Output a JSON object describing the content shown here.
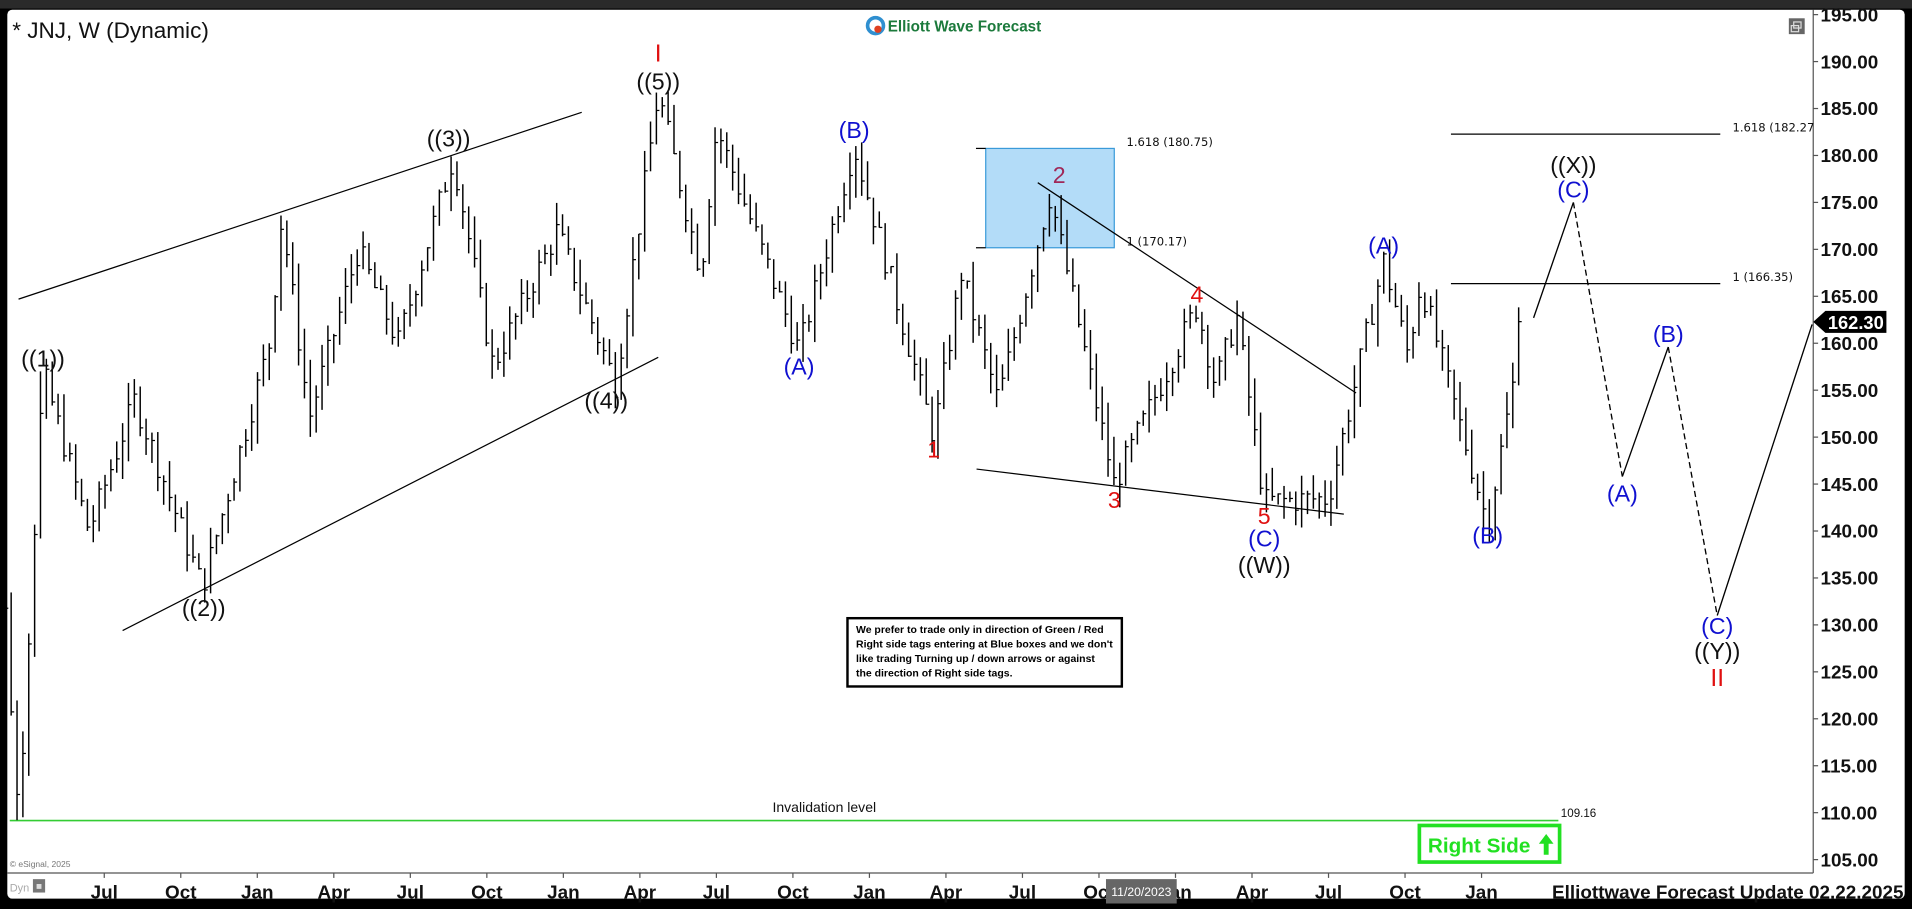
{
  "header": {
    "title": "* JNJ, W (Dynamic)",
    "logo_text": "Elliott Wave Forecast"
  },
  "footer": {
    "update": "Elliottwave Forecast Update 02.22.2025",
    "copyright": "© eSignal, 2025",
    "dyn": "Dyn",
    "cursor_date": "11/20/2023"
  },
  "note": [
    "We prefer to trade only in direction of Green / Red",
    "Right side tags entering at Blue boxes and we don't",
    "like trading Turning up / down arrows or against",
    "the direction of Right side tags."
  ],
  "right_side_tag": {
    "label": "Right Side",
    "direction": "up",
    "color": "#22e022"
  },
  "invalidation": {
    "label": "Invalidation level",
    "value_label": "109.16",
    "value": 109.16,
    "color": "#33cc33"
  },
  "last_price": {
    "label": "162.30",
    "value": 162.3
  },
  "colors": {
    "blue_box": "#b3dcf8",
    "blue_box_border": "#3a9ad9",
    "wave_blue": "#1010d0",
    "wave_red": "#e01010",
    "wave_maroon": "#a02858",
    "logo_green": "#1c7a3c"
  },
  "chart_data": {
    "type": "ohlc",
    "symbol": "JNJ",
    "interval": "W",
    "ylim": [
      103,
      196
    ],
    "y_ticks": [
      "195.00",
      "190.00",
      "185.00",
      "180.00",
      "175.00",
      "170.00",
      "165.00",
      "160.00",
      "155.00",
      "150.00",
      "145.00",
      "140.00",
      "135.00",
      "130.00",
      "125.00",
      "120.00",
      "115.00",
      "110.00",
      "105.00"
    ],
    "x_ticks": [
      {
        "label": "Jul",
        "date": 2020.5
      },
      {
        "label": "Oct",
        "date": 2020.75
      },
      {
        "label": "Jan",
        "date": 2021.0
      },
      {
        "label": "Apr",
        "date": 2021.25
      },
      {
        "label": "Jul",
        "date": 2021.5
      },
      {
        "label": "Oct",
        "date": 2021.75
      },
      {
        "label": "Jan",
        "date": 2022.0
      },
      {
        "label": "Apr",
        "date": 2022.25
      },
      {
        "label": "Jul",
        "date": 2022.5
      },
      {
        "label": "Oct",
        "date": 2022.75
      },
      {
        "label": "Jan",
        "date": 2023.0
      },
      {
        "label": "Apr",
        "date": 2023.25
      },
      {
        "label": "Jul",
        "date": 2023.5
      },
      {
        "label": "Oct",
        "date": 2023.75
      },
      {
        "label": "Jan",
        "date": 2024.0
      },
      {
        "label": "Apr",
        "date": 2024.25
      },
      {
        "label": "Jul",
        "date": 2024.5
      },
      {
        "label": "Oct",
        "date": 2024.75
      },
      {
        "label": "Jan",
        "date": 2025.0
      }
    ],
    "price_path": [
      [
        2020.1,
        148
      ],
      [
        2020.14,
        150
      ],
      [
        2020.22,
        109.2
      ],
      [
        2020.3,
        157.0
      ],
      [
        2020.45,
        140
      ],
      [
        2020.6,
        154
      ],
      [
        2020.82,
        134
      ],
      [
        2021.04,
        160
      ],
      [
        2021.08,
        173.6
      ],
      [
        2021.17,
        152
      ],
      [
        2021.33,
        170
      ],
      [
        2021.46,
        160
      ],
      [
        2021.64,
        179.9
      ],
      [
        2021.77,
        157.5
      ],
      [
        2021.98,
        172
      ],
      [
        2022.17,
        155.7
      ],
      [
        2022.31,
        186.7
      ],
      [
        2022.45,
        167.5
      ],
      [
        2022.5,
        183
      ],
      [
        2022.77,
        159.2
      ],
      [
        2022.95,
        181
      ],
      [
        2023.21,
        150.1
      ],
      [
        2023.3,
        167.5
      ],
      [
        2023.42,
        153.8
      ],
      [
        2023.59,
        175.9
      ],
      [
        2023.8,
        144.9
      ],
      [
        2024.07,
        164
      ],
      [
        2024.13,
        155.5
      ],
      [
        2024.2,
        163
      ],
      [
        2024.29,
        143.1
      ],
      [
        2024.5,
        143.5
      ],
      [
        2024.68,
        168.8
      ],
      [
        2024.76,
        158.8
      ],
      [
        2024.8,
        166.5
      ],
      [
        2025.02,
        140.7
      ],
      [
        2025.14,
        162.3
      ]
    ],
    "projection": [
      {
        "from": [
          2025.17,
          162.7
        ],
        "to": [
          2025.3,
          175
        ],
        "style": "solid"
      },
      {
        "from": [
          2025.3,
          175
        ],
        "to": [
          2025.46,
          145.8
        ],
        "style": "dashed"
      },
      {
        "from": [
          2025.46,
          145.8
        ],
        "to": [
          2025.61,
          159.6
        ],
        "style": "solid"
      },
      {
        "from": [
          2025.61,
          159.6
        ],
        "to": [
          2025.77,
          131
        ],
        "style": "dashed"
      },
      {
        "from": [
          2025.77,
          131
        ],
        "to": [
          2026.08,
          162
        ],
        "style": "solid"
      }
    ],
    "trendlines": [
      {
        "from": [
          2020.22,
          164.7
        ],
        "to": [
          2022.06,
          184.6
        ]
      },
      {
        "from": [
          2020.56,
          129.4
        ],
        "to": [
          2022.31,
          158.5
        ]
      },
      {
        "from": [
          2023.55,
          177.1
        ],
        "to": [
          2024.59,
          154.7
        ]
      },
      {
        "from": [
          2023.35,
          146.6
        ],
        "to": [
          2024.55,
          141.8
        ]
      }
    ],
    "blue_box": {
      "from": 2023.38,
      "to": 2023.8,
      "low": 170.17,
      "high": 180.75,
      "labels": [
        "1.618 (180.75)",
        "1 (170.17)"
      ]
    },
    "fib_levels": [
      {
        "label": "1.618 (182.27",
        "value": 182.27,
        "from": 2024.9,
        "to": 2025.78
      },
      {
        "label": "1 (166.35)",
        "value": 166.35,
        "from": 2024.9,
        "to": 2025.78
      }
    ],
    "wave_labels": [
      {
        "text": "((1))",
        "date": 2020.3,
        "price": 158.2,
        "color": "black"
      },
      {
        "text": "((2))",
        "date": 2020.825,
        "price": 131.6,
        "color": "black"
      },
      {
        "text": "((3))",
        "date": 2021.625,
        "price": 181.6,
        "color": "black"
      },
      {
        "text": "((4))",
        "date": 2022.14,
        "price": 153.7,
        "color": "black"
      },
      {
        "text": "((5))",
        "date": 2022.31,
        "price": 187.7,
        "color": "black"
      },
      {
        "text": "I",
        "date": 2022.31,
        "price": 190.7,
        "color": "red",
        "big": true
      },
      {
        "text": "(A)",
        "date": 2022.77,
        "price": 157.3,
        "color": "blue"
      },
      {
        "text": "(B)",
        "date": 2022.95,
        "price": 182.5,
        "color": "blue"
      },
      {
        "text": "1",
        "date": 2023.21,
        "price": 148.5,
        "color": "red"
      },
      {
        "text": "2",
        "date": 2023.62,
        "price": 177.7,
        "color": "maroon"
      },
      {
        "text": "3",
        "date": 2023.8,
        "price": 143.1,
        "color": "red"
      },
      {
        "text": "4",
        "date": 2024.07,
        "price": 165.0,
        "color": "red"
      },
      {
        "text": "5",
        "date": 2024.29,
        "price": 141.4,
        "color": "red"
      },
      {
        "text": "(C)",
        "date": 2024.29,
        "price": 139.0,
        "color": "blue"
      },
      {
        "text": "((W))",
        "date": 2024.29,
        "price": 136.2,
        "color": "black"
      },
      {
        "text": "(A)",
        "date": 2024.68,
        "price": 170.2,
        "color": "blue"
      },
      {
        "text": "(B)",
        "date": 2025.02,
        "price": 139.3,
        "color": "blue"
      },
      {
        "text": "((X))",
        "date": 2025.3,
        "price": 178.8,
        "color": "black"
      },
      {
        "text": "(C)",
        "date": 2025.3,
        "price": 176.2,
        "color": "blue"
      },
      {
        "text": "(A)",
        "date": 2025.46,
        "price": 143.8,
        "color": "blue"
      },
      {
        "text": "(B)",
        "date": 2025.61,
        "price": 160.8,
        "color": "blue"
      },
      {
        "text": "(C)",
        "date": 2025.77,
        "price": 129.7,
        "color": "blue"
      },
      {
        "text": "((Y))",
        "date": 2025.77,
        "price": 127.0,
        "color": "black"
      },
      {
        "text": "II",
        "date": 2025.77,
        "price": 124.2,
        "color": "red",
        "big": true
      }
    ]
  }
}
